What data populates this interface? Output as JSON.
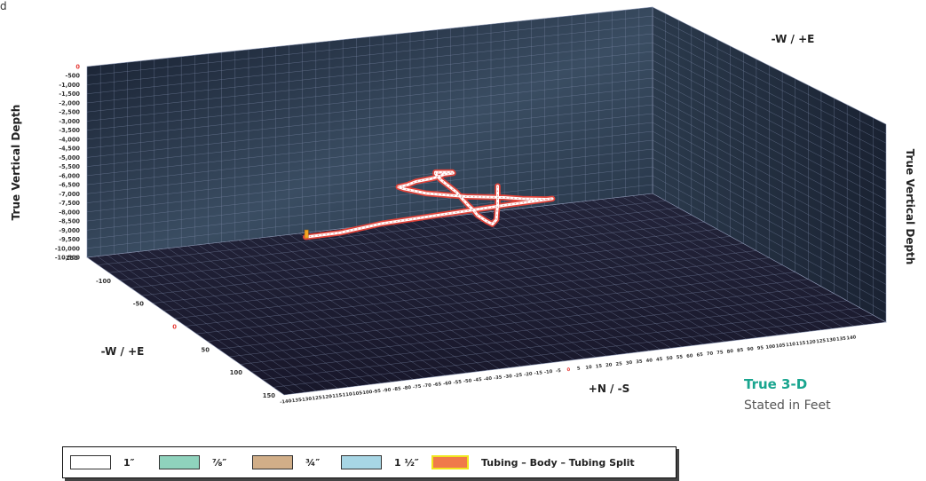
{
  "corner_text": "d",
  "chart_data": {
    "type": "3d-line",
    "vertical_axis_label": "True Vertical Depth",
    "right_axis_label": "True Vertical Depth",
    "top_axis_label": "-W / +E",
    "left_axis_label": "-W / +E",
    "bottom_axis_label": "+N / -S",
    "depth_ticks": [
      "0",
      "-500",
      "-1,000",
      "-1,500",
      "-2,000",
      "-2,500",
      "-3,000",
      "-3,500",
      "-4,000",
      "-4,500",
      "-5,000",
      "-5,500",
      "-6,000",
      "-6,500",
      "-7,000",
      "-7,500",
      "-8,000",
      "-8,500",
      "-9,000",
      "-9,500",
      "-10,000",
      "-10,500"
    ],
    "we_ticks": [
      "-150",
      "-100",
      "-50",
      "0",
      "50",
      "100",
      "150"
    ],
    "ns_ticks": [
      "-140",
      "-135",
      "-130",
      "-125",
      "-120",
      "-115",
      "-110",
      "-105",
      "-100",
      "-95",
      "-90",
      "-85",
      "-80",
      "-75",
      "-70",
      "-65",
      "-60",
      "-55",
      "-50",
      "-45",
      "-40",
      "-35",
      "-30",
      "-25",
      "-20",
      "-15",
      "-10",
      "-5",
      "0",
      "5",
      "10",
      "15",
      "20",
      "25",
      "30",
      "35",
      "40",
      "45",
      "50",
      "55",
      "60",
      "65",
      "70",
      "75",
      "80",
      "85",
      "90",
      "95",
      "100",
      "105",
      "110",
      "115",
      "120",
      "125",
      "130",
      "135",
      "140"
    ],
    "zero_color": "#e53935",
    "grid": true,
    "colors": {
      "panel": "#1d2638",
      "grid": "#7a88a6",
      "tubing_core": "#ffffff",
      "tubing_outline": "#e0433a",
      "body_marker": "#f2a623"
    },
    "well_path": {
      "name": "",
      "points": [
        [
          -140,
          -35,
          -10450
        ],
        [
          -134,
          -20,
          -10250
        ],
        [
          -132,
          0,
          -9950
        ],
        [
          -128,
          30,
          -9700
        ],
        [
          -122,
          60,
          -9400
        ],
        [
          -112,
          78,
          -9050
        ],
        [
          -102,
          72,
          -8750
        ],
        [
          -96,
          58,
          -8400
        ],
        [
          -94,
          48,
          -8150
        ],
        [
          -95,
          30,
          -7900
        ],
        [
          -101,
          12,
          -7650
        ],
        [
          -104,
          2,
          -7350
        ],
        [
          -100,
          -2,
          -7100
        ],
        [
          -92,
          0,
          -6800
        ],
        [
          -86,
          2,
          -6500
        ],
        [
          -80,
          8,
          -6250
        ],
        [
          -74,
          10,
          -6000
        ],
        [
          -68,
          10,
          -5750
        ],
        [
          -60,
          12,
          -5500
        ],
        [
          -55,
          10,
          -5300
        ],
        [
          -50,
          0,
          -5050
        ],
        [
          -44,
          -2,
          -4950
        ],
        [
          -30,
          -4,
          -4900
        ],
        [
          -15,
          -5,
          -4850
        ],
        [
          0,
          -6,
          -4800
        ],
        [
          15,
          -8,
          -4750
        ],
        [
          30,
          -10,
          -4700
        ],
        [
          45,
          -12,
          -4600
        ],
        [
          60,
          -15,
          -4450
        ],
        [
          80,
          -17,
          -4250
        ],
        [
          92,
          -18,
          -4100
        ],
        [
          98,
          -18,
          -3700
        ],
        [
          99,
          -18,
          -3200
        ],
        [
          100,
          -18,
          -2900
        ],
        [
          100,
          -18,
          -2500
        ],
        [
          100,
          -18,
          -2100
        ],
        [
          100,
          -18,
          -1800
        ]
      ]
    },
    "body_marker_point": [
      -140,
      -35,
      -10450
    ]
  },
  "legend": {
    "items": [
      {
        "label": "1″",
        "color": "#ffffff"
      },
      {
        "label": "⅞″",
        "color": "#8fd3bd"
      },
      {
        "label": "¾″",
        "color": "#d1ae88"
      },
      {
        "label": "1 ½″",
        "color": "#a7d6e5"
      },
      {
        "label": "Tubing – Body – Tubing Split",
        "color": "#f07a4a",
        "border": "#f0e61f"
      }
    ]
  },
  "info": {
    "title": "True 3-D",
    "subtitle": "Stated in Feet"
  }
}
